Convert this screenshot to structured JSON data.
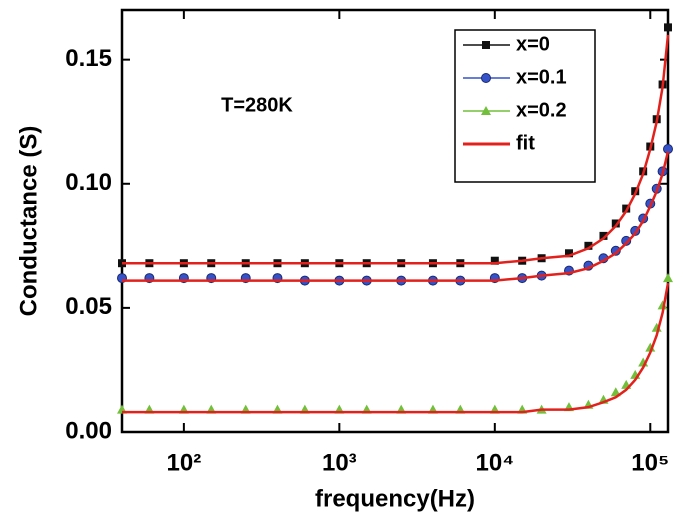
{
  "chart_data": {
    "type": "line",
    "annotation": "T=280K",
    "x_label": "frequency(Hz)",
    "y_label": "Conductance (S)",
    "x_log": true,
    "xlim": [
      40,
      130000
    ],
    "ylim": [
      0,
      0.17
    ],
    "xticks": [
      {
        "value": 100,
        "label": "10²"
      },
      {
        "value": 1000,
        "label": "10³"
      },
      {
        "value": 10000,
        "label": "10⁴"
      },
      {
        "value": 100000,
        "label": "10⁵"
      }
    ],
    "yticks": [
      {
        "value": 0,
        "label": "0.00"
      },
      0.05,
      {
        "value": 0.1,
        "label": "0.10"
      },
      0.15
    ],
    "legend_position": "upper right",
    "x": [
      40,
      60,
      100,
      150,
      250,
      400,
      600,
      1000,
      1500,
      2500,
      4000,
      6000,
      10000,
      15000,
      20000,
      30000,
      40000,
      50000,
      60000,
      70000,
      80000,
      90000,
      100000,
      110000,
      120000,
      130000
    ],
    "series": [
      {
        "name": "x=0",
        "color": "#111111",
        "marker": "square",
        "values": [
          0.068,
          0.068,
          0.068,
          0.068,
          0.068,
          0.068,
          0.068,
          0.068,
          0.068,
          0.068,
          0.068,
          0.068,
          0.069,
          0.069,
          0.07,
          0.072,
          0.075,
          0.079,
          0.084,
          0.09,
          0.097,
          0.105,
          0.115,
          0.126,
          0.14,
          0.163
        ]
      },
      {
        "name": "x=0.1",
        "color": "#3652c8",
        "marker": "circle",
        "values": [
          0.062,
          0.062,
          0.062,
          0.062,
          0.062,
          0.062,
          0.061,
          0.061,
          0.061,
          0.061,
          0.061,
          0.061,
          0.062,
          0.062,
          0.063,
          0.065,
          0.067,
          0.07,
          0.073,
          0.077,
          0.081,
          0.086,
          0.092,
          0.098,
          0.105,
          0.114
        ]
      },
      {
        "name": "x=0.2",
        "color": "#72bf3c",
        "marker": "triangle",
        "values": [
          0.009,
          0.009,
          0.009,
          0.009,
          0.009,
          0.009,
          0.009,
          0.009,
          0.009,
          0.009,
          0.009,
          0.009,
          0.009,
          0.009,
          0.009,
          0.01,
          0.011,
          0.013,
          0.016,
          0.019,
          0.023,
          0.028,
          0.034,
          0.042,
          0.051,
          0.062
        ]
      },
      {
        "name": "fit",
        "color": "#e3211c",
        "curves": [
          [
            0.068,
            0.068,
            0.068,
            0.068,
            0.068,
            0.068,
            0.068,
            0.068,
            0.068,
            0.068,
            0.068,
            0.068,
            0.068,
            0.069,
            0.07,
            0.071,
            0.074,
            0.078,
            0.083,
            0.089,
            0.096,
            0.104,
            0.114,
            0.125,
            0.139,
            0.16
          ],
          [
            0.061,
            0.061,
            0.061,
            0.061,
            0.061,
            0.061,
            0.061,
            0.061,
            0.061,
            0.061,
            0.061,
            0.061,
            0.061,
            0.062,
            0.063,
            0.064,
            0.066,
            0.069,
            0.072,
            0.076,
            0.08,
            0.085,
            0.091,
            0.097,
            0.104,
            0.113
          ],
          [
            0.008,
            0.008,
            0.008,
            0.008,
            0.008,
            0.008,
            0.008,
            0.008,
            0.008,
            0.008,
            0.008,
            0.008,
            0.008,
            0.008,
            0.009,
            0.009,
            0.01,
            0.012,
            0.014,
            0.017,
            0.021,
            0.026,
            0.032,
            0.039,
            0.048,
            0.06
          ]
        ]
      }
    ]
  }
}
